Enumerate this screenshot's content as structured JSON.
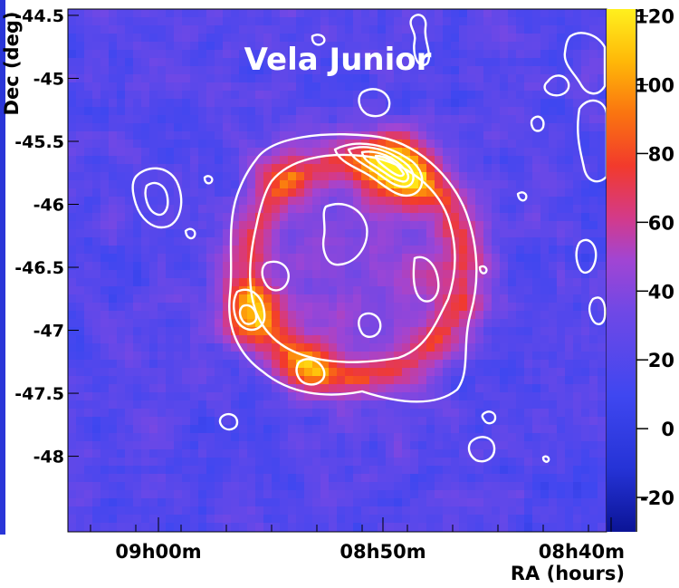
{
  "chart_data": {
    "type": "heatmap",
    "title": "Vela Junior",
    "xlabel": "RA (hours)",
    "ylabel": "Dec (deg)",
    "x_ticks": [
      "09h00m",
      "08h50m",
      "08h40m"
    ],
    "y_ticks": [
      "-44.5",
      "-45",
      "-45.5",
      "-46",
      "-46.5",
      "-47",
      "-47.5",
      "-48"
    ],
    "colorbar": {
      "ticks": [
        "120",
        "100",
        "80",
        "60",
        "40",
        "20",
        "0",
        "-20"
      ],
      "range": [
        -30,
        122
      ],
      "colors": [
        "#0b1496",
        "#2533d6",
        "#3f47f0",
        "#6f48e6",
        "#a145d3",
        "#d33a8a",
        "#f23a2c",
        "#fa7410",
        "#ffb808",
        "#fff01e"
      ]
    },
    "regions": {
      "shell_center": [
        "08h50m",
        "-46.3"
      ],
      "shell_radius_deg": 1.0,
      "hotspots": [
        {
          "ra": "08h49m",
          "dec": "-45.6",
          "level": 110
        },
        {
          "ra": "08h56m",
          "dec": "-46.75",
          "level": 85
        },
        {
          "ra": "08h53m",
          "dec": "-47.15",
          "level": 80
        }
      ]
    }
  }
}
